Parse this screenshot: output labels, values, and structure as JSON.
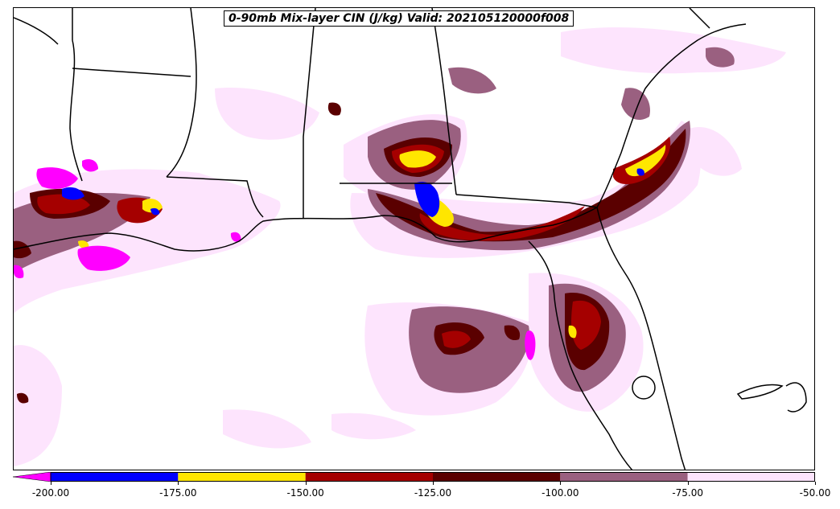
{
  "title": "0-90mb Mix-layer CIN (J/kg) Valid: 202105120000f008",
  "colorbar": {
    "extend_color": "#ff00ff",
    "bins": [
      {
        "from": -200,
        "to": -175,
        "color": "#0000ff"
      },
      {
        "from": -175,
        "to": -150,
        "color": "#ffe600"
      },
      {
        "from": -150,
        "to": -125,
        "color": "#a50000"
      },
      {
        "from": -125,
        "to": -100,
        "color": "#5a0000"
      },
      {
        "from": -100,
        "to": -75,
        "color": "#9a6080"
      },
      {
        "from": -75,
        "to": -50,
        "color": "#fde4fd"
      }
    ],
    "tick_labels": [
      "-200.00",
      "-175.00",
      "-150.00",
      "-125.00",
      "-100.00",
      "-75.00",
      "-50.00"
    ]
  },
  "colors": {
    "pink_light": "#fde4fd",
    "mauve": "#9a6080",
    "dark_red": "#5a0000",
    "red": "#a50000",
    "yellow": "#ffe600",
    "blue": "#0000ff",
    "magenta": "#ff00ff"
  }
}
